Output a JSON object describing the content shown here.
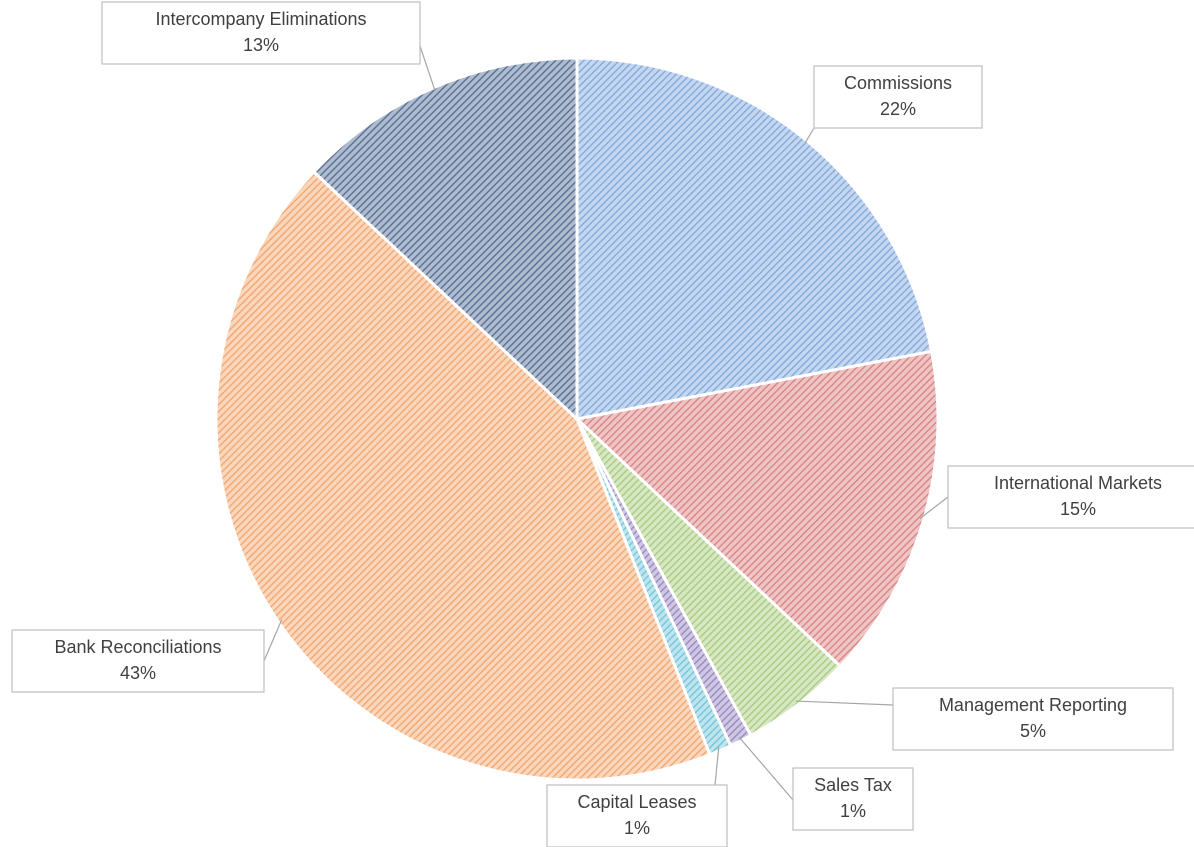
{
  "chart_data": {
    "type": "pie",
    "categories": [
      "Commissions",
      "International Markets",
      "Management Reporting",
      "Sales Tax",
      "Capital Leases",
      "Bank Reconciliations",
      "Intercompany Eliminations"
    ],
    "values": [
      22,
      15,
      5,
      1,
      1,
      43,
      13
    ],
    "value_labels": [
      "22%",
      "15%",
      "5%",
      "1%",
      "1%",
      "43%",
      "13%"
    ],
    "colors": [
      "#7ea6dc",
      "#d97f7f",
      "#a6c97a",
      "#9484c0",
      "#6fc3d8",
      "#f3a46a",
      "#4f6a93"
    ]
  }
}
